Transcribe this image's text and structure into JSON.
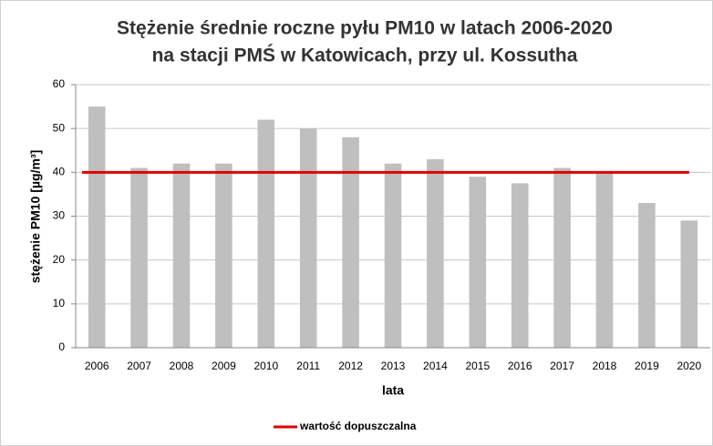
{
  "chart_data": {
    "type": "bar",
    "title": [
      "Stężenie średnie roczne pyłu PM10 w latach 2006-2020",
      "na stacji PMŚ w Katowicach, przy ul. Kossutha"
    ],
    "x_label": "lata",
    "y_label": "stężenie  PM10 [µg/m³]",
    "categories": [
      "2006",
      "2007",
      "2008",
      "2009",
      "2010",
      "2011",
      "2012",
      "2013",
      "2014",
      "2015",
      "2016",
      "2017",
      "2018",
      "2019",
      "2020"
    ],
    "values": [
      55,
      41,
      42,
      42,
      52,
      50,
      48,
      42,
      43,
      39,
      37.5,
      41,
      40,
      33,
      29
    ],
    "color": "#bfbfbf",
    "reference_line": {
      "name": "wartość dopuszczalna",
      "value": 40,
      "color": "#e00000"
    },
    "ylim": [
      0,
      60
    ],
    "yticks": [
      0,
      10,
      20,
      30,
      40,
      50,
      60
    ],
    "grid": true
  }
}
